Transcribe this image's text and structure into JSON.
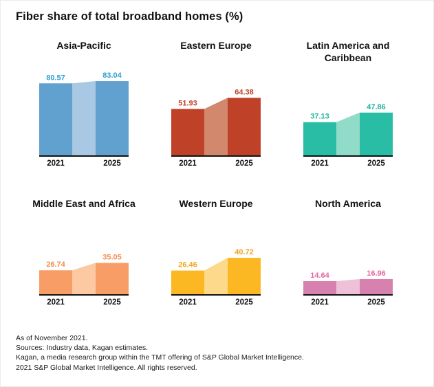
{
  "page": {
    "title": "Fiber share of total broadband homes (%)"
  },
  "chart_data": {
    "type": "bar",
    "layout": "small-multiples-2x3",
    "title": "Fiber share of total broadband homes (%)",
    "unit": "%",
    "categories": [
      "2021",
      "2025"
    ],
    "value_labels": true,
    "grid": false,
    "ylim": [
      0,
      90
    ],
    "charts": [
      {
        "region": "Asia-Pacific",
        "values": [
          80.57,
          83.04
        ],
        "colors": {
          "bar": "#61a1cf",
          "fill": "#a9c8e3",
          "label": "#2e9fd4"
        }
      },
      {
        "region": "Eastern Europe",
        "values": [
          51.93,
          64.38
        ],
        "colors": {
          "bar": "#bf4228",
          "fill": "#d1886d",
          "label": "#c04228"
        }
      },
      {
        "region": "Latin America and Caribbean",
        "values": [
          37.13,
          47.86
        ],
        "colors": {
          "bar": "#2abda6",
          "fill": "#90dcc8",
          "label": "#21b59c"
        }
      },
      {
        "region": "Middle East and Africa",
        "values": [
          26.74,
          35.05
        ],
        "colors": {
          "bar": "#f99d66",
          "fill": "#fcc9a2",
          "label": "#f78d4f"
        }
      },
      {
        "region": "Western Europe",
        "values": [
          26.46,
          40.72
        ],
        "colors": {
          "bar": "#fcb822",
          "fill": "#fdd98c",
          "label": "#f2a51c"
        }
      },
      {
        "region": "North America",
        "values": [
          14.64,
          16.96
        ],
        "colors": {
          "bar": "#d782ae",
          "fill": "#eec1d9",
          "label": "#e4679e"
        }
      }
    ]
  },
  "footer": {
    "lines": [
      "As of November 2021.",
      "Sources: Industry data, Kagan estimates.",
      "Kagan, a media research group within the TMT offering of S&P Global Market Intelligence.",
      "2021 S&P Global Market Intelligence. All rights reserved."
    ]
  }
}
